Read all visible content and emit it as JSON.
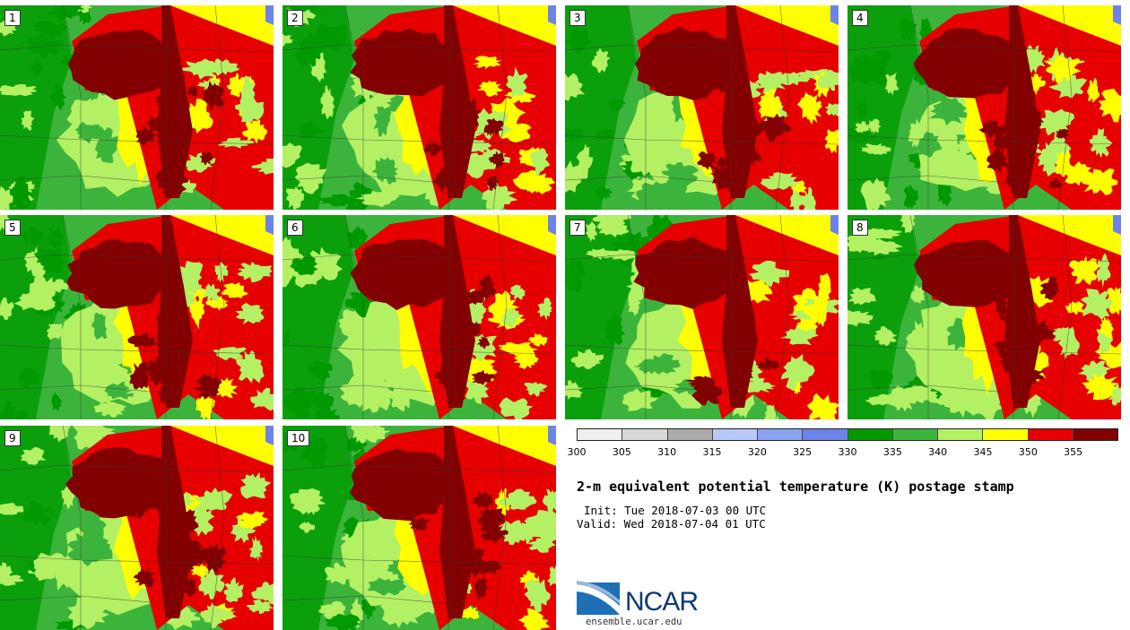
{
  "title": "2-m equivalent potential temperature (K) postage stamp",
  "init_text": "Init: Tue 2018-07-03 00 UTC",
  "valid_text": "Valid: Wed 2018-07-04 01 UTC",
  "logo": {
    "name": "NCAR",
    "url": "ensemble.ucar.edu"
  },
  "members": [
    "1",
    "2",
    "3",
    "4",
    "5",
    "6",
    "7",
    "8",
    "9",
    "10"
  ],
  "colorbar": {
    "ticks": [
      "300",
      "305",
      "310",
      "315",
      "320",
      "325",
      "330",
      "335",
      "340",
      "345",
      "350",
      "355"
    ],
    "colors": [
      "#f0f0f0",
      "#d8d8d8",
      "#ababab",
      "#b8c8f8",
      "#8aa4f0",
      "#6c84e8",
      "#009a00",
      "#3cb43c",
      "#b4f064",
      "#ffff00",
      "#e60000",
      "#820000"
    ]
  },
  "map_colors": {
    "green_dark": "#009a00",
    "green": "#3cb43c",
    "green_light": "#b4f064",
    "yellow": "#ffff00",
    "red": "#e60000",
    "maroon": "#820000",
    "lake": "#6c84e8"
  }
}
